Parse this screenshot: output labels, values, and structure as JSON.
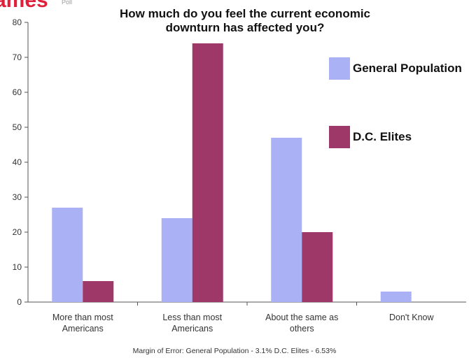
{
  "brand": {
    "name": "ames",
    "sub": "Poll"
  },
  "chart_data": {
    "type": "bar",
    "title": "How much do you feel the current economic downturn has affected you?",
    "categories": [
      [
        "More than most",
        "Americans"
      ],
      [
        "Less than most",
        "Americans"
      ],
      [
        "About the same as",
        "others"
      ],
      [
        "Don't Know"
      ]
    ],
    "series": [
      {
        "name": "General Population",
        "color": "#aab2f5",
        "values": [
          27,
          24,
          47,
          3
        ]
      },
      {
        "name": "D.C. Elites",
        "color": "#9e3868",
        "values": [
          6,
          74,
          20,
          0
        ]
      }
    ],
    "ylim": [
      0,
      80
    ],
    "yticks": [
      0,
      10,
      20,
      30,
      40,
      50,
      60,
      70,
      80
    ],
    "grid": false,
    "legend": "right",
    "footnote": "Margin of Error: General Population - 3.1%  D.C. Elites - 6.53%"
  }
}
